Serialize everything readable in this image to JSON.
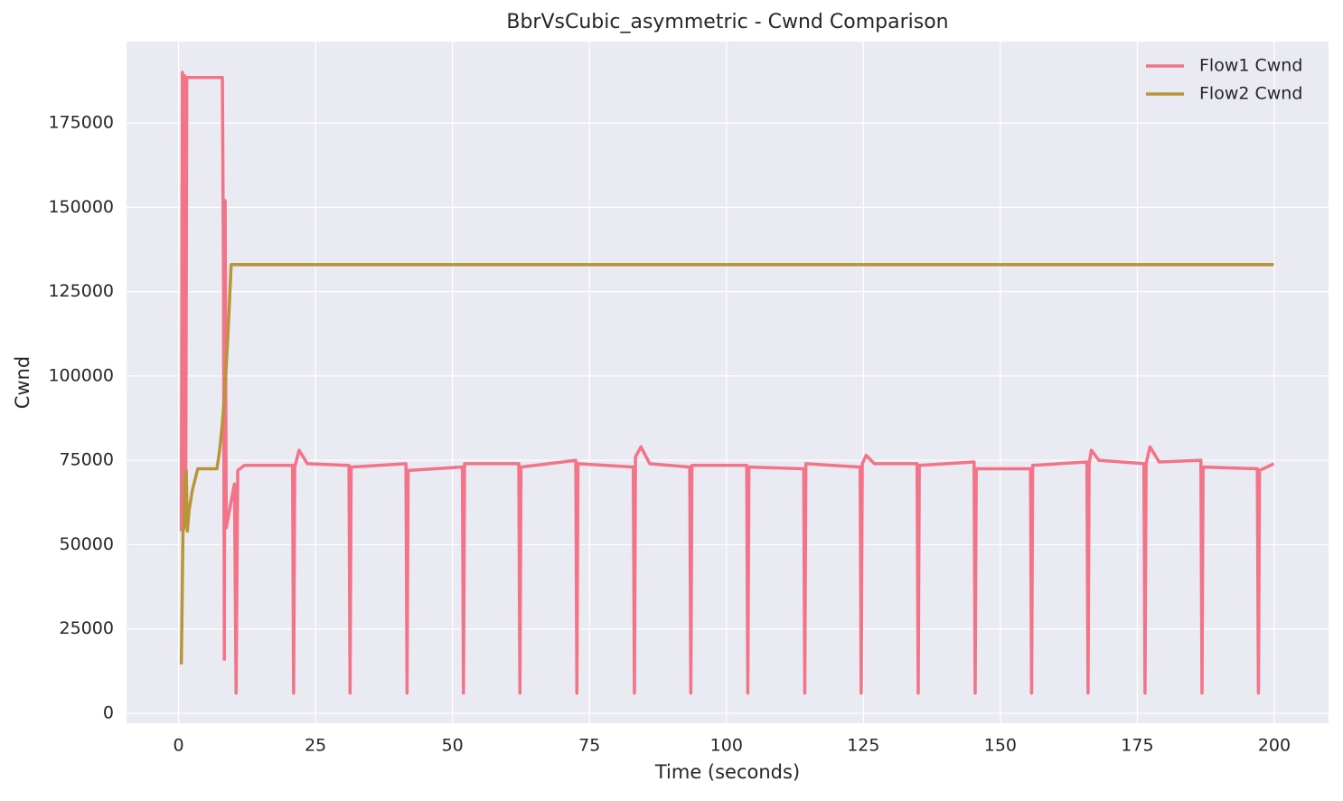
{
  "chart_data": {
    "type": "line",
    "title": "BbrVsCubic_asymmetric - Cwnd Comparison",
    "x_label": "Time (seconds)",
    "y_label": "Cwnd",
    "xlim": [
      -9.5,
      209.9
    ],
    "ylim": [
      -2950,
      199150
    ],
    "xticks": [
      0,
      25,
      50,
      75,
      100,
      125,
      150,
      175,
      200
    ],
    "yticks": [
      0,
      25000,
      50000,
      75000,
      100000,
      125000,
      150000,
      175000
    ],
    "grid": true,
    "legend": "upper right",
    "series": [
      {
        "name": "Flow1 Cwnd",
        "color": "#f37389",
        "x": [
          0.5,
          0.7,
          0.9,
          1.1,
          1.3,
          1.5,
          8.0,
          8.2,
          8.35,
          8.5,
          8.7,
          9.5,
          10.2,
          10.5,
          10.8,
          12,
          20.8,
          21.0,
          21.2,
          22.0,
          23.5,
          31.1,
          31.3,
          31.5,
          41.5,
          41.7,
          41.9,
          51.8,
          52.0,
          52.2,
          62.1,
          62.3,
          62.5,
          72.5,
          72.7,
          72.9,
          83.0,
          83.2,
          83.4,
          84.4,
          86,
          93.3,
          93.5,
          93.7,
          103.7,
          103.9,
          104.1,
          114.1,
          114.3,
          114.5,
          124.4,
          124.6,
          124.8,
          125.5,
          127,
          134.8,
          135.0,
          135.2,
          145.2,
          145.4,
          145.6,
          155.5,
          155.7,
          155.9,
          165.8,
          166.0,
          166.2,
          166.6,
          168,
          176.2,
          176.4,
          176.6,
          177.3,
          179,
          186.6,
          186.8,
          187.0,
          196.9,
          197.1,
          197.3,
          199.9
        ],
        "values": [
          54000,
          190000,
          55000,
          189000,
          60000,
          188500,
          188500,
          129000,
          16000,
          152000,
          55000,
          62000,
          68000,
          6000,
          72000,
          73500,
          73500,
          6000,
          73000,
          78000,
          74000,
          73500,
          6000,
          73000,
          74000,
          6000,
          72000,
          73000,
          6000,
          74000,
          74000,
          6000,
          73000,
          75000,
          6000,
          74000,
          73000,
          6000,
          76000,
          79000,
          74000,
          73000,
          6000,
          73500,
          73500,
          6000,
          73000,
          72500,
          6000,
          74000,
          73000,
          6000,
          74000,
          76500,
          74000,
          74000,
          6000,
          73500,
          74500,
          6000,
          72500,
          72500,
          6000,
          73500,
          74500,
          6000,
          74000,
          78000,
          75000,
          74000,
          6000,
          74000,
          79000,
          74500,
          75000,
          6000,
          73000,
          72500,
          6000,
          72000,
          74000
        ]
      },
      {
        "name": "Flow2 Cwnd",
        "color": "#b9953a",
        "x": [
          0.5,
          0.6,
          0.8,
          1.0,
          1.2,
          1.4,
          1.6,
          1.9,
          2.5,
          3.5,
          7.0,
          7.5,
          8.0,
          8.5,
          9.0,
          9.6,
          199.9
        ],
        "values": [
          14500,
          27000,
          54000,
          55000,
          70000,
          72000,
          54000,
          60000,
          66000,
          72500,
          72500,
          78000,
          86000,
          97000,
          112000,
          133000,
          133000
        ]
      }
    ]
  }
}
